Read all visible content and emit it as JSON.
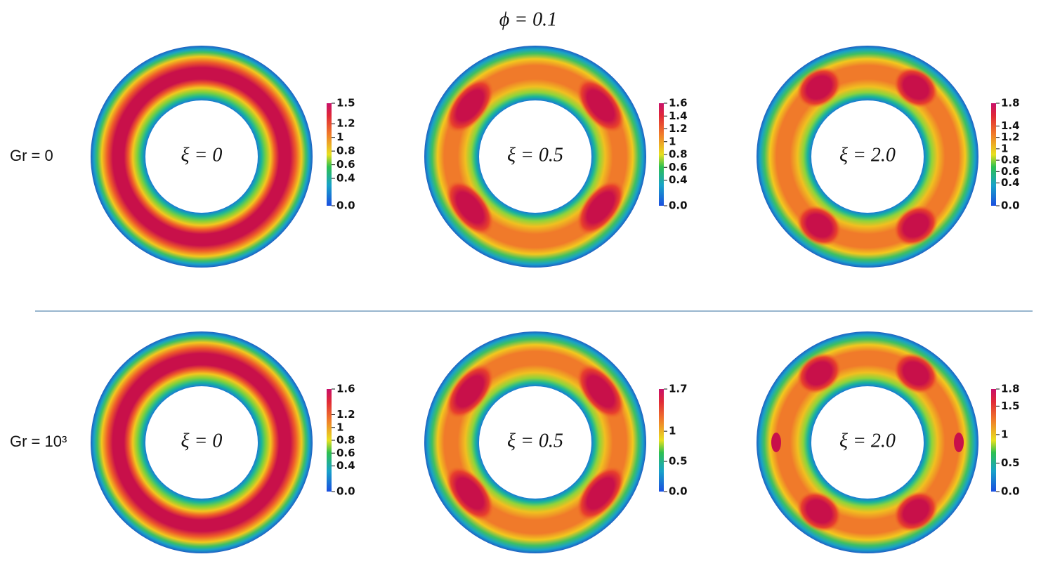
{
  "title": "ϕ = 0.1",
  "rows": [
    {
      "label": "Gr = 0",
      "panels": [
        {
          "label": "ξ = 0",
          "colorbar": [
            "1.5",
            "1.2",
            "1",
            "0.8",
            "0.6",
            "0.4",
            "0.0"
          ]
        },
        {
          "label": "ξ = 0.5",
          "colorbar": [
            "1.6",
            "1.4",
            "1.2",
            "1",
            "0.8",
            "0.6",
            "0.4",
            "0.0"
          ]
        },
        {
          "label": "ξ = 2.0",
          "colorbar": [
            "1.8",
            "1.4",
            "1.2",
            "1",
            "0.8",
            "0.6",
            "0.4",
            "0.0"
          ]
        }
      ]
    },
    {
      "label": "Gr = 10³",
      "panels": [
        {
          "label": "ξ = 0",
          "colorbar": [
            "1.6",
            "1.2",
            "1",
            "0.8",
            "0.6",
            "0.4",
            "0.0"
          ]
        },
        {
          "label": "ξ = 0.5",
          "colorbar": [
            "1.7",
            "1",
            "0.5",
            "0.0"
          ]
        },
        {
          "label": "ξ = 2.0",
          "colorbar": [
            "1.8",
            "1.5",
            "1",
            "0.5",
            "0.0"
          ]
        }
      ]
    }
  ]
}
